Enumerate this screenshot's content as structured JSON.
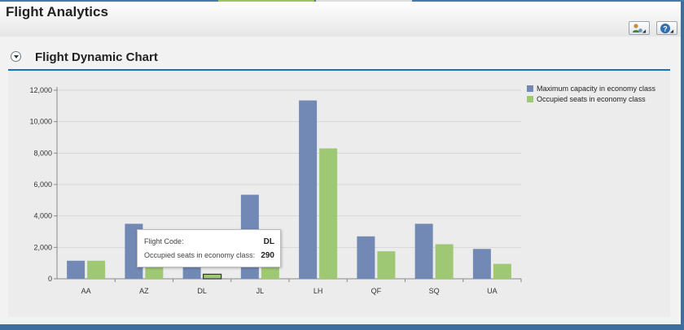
{
  "app": {
    "title": "Flight Analytics"
  },
  "toolbar": {
    "personalize_icon": "person-settings-icon",
    "help_icon": "help-icon"
  },
  "panel": {
    "title": "Flight Dynamic Chart"
  },
  "colors": {
    "series1": "#7189b4",
    "series2": "#9ec873",
    "accent": "#1b73b6",
    "border": "#3f6e9e"
  },
  "chart_data": {
    "type": "bar",
    "title": "",
    "xlabel": "",
    "ylabel": "",
    "categories": [
      "AA",
      "AZ",
      "DL",
      "JL",
      "LH",
      "QF",
      "SQ",
      "UA"
    ],
    "ylim": [
      0,
      12000
    ],
    "yticks": [
      0,
      2000,
      4000,
      6000,
      8000,
      10000,
      12000
    ],
    "ytick_labels": [
      "0",
      "2,000",
      "4,000",
      "6,000",
      "8,000",
      "10,000",
      "12,000"
    ],
    "grid": true,
    "legend_position": "top-right",
    "series": [
      {
        "name": "Maximum capacity in economy class",
        "values": [
          1150,
          3500,
          1500,
          5350,
          11350,
          2700,
          3500,
          1900
        ]
      },
      {
        "name": "Occupied seats in economy class",
        "values": [
          1150,
          1500,
          290,
          1700,
          8300,
          1750,
          2200,
          950
        ]
      }
    ],
    "tooltip": {
      "label1": "Flight Code:",
      "value1": "DL",
      "label2": "Occupied seats in economy class:",
      "value2": "290"
    }
  }
}
